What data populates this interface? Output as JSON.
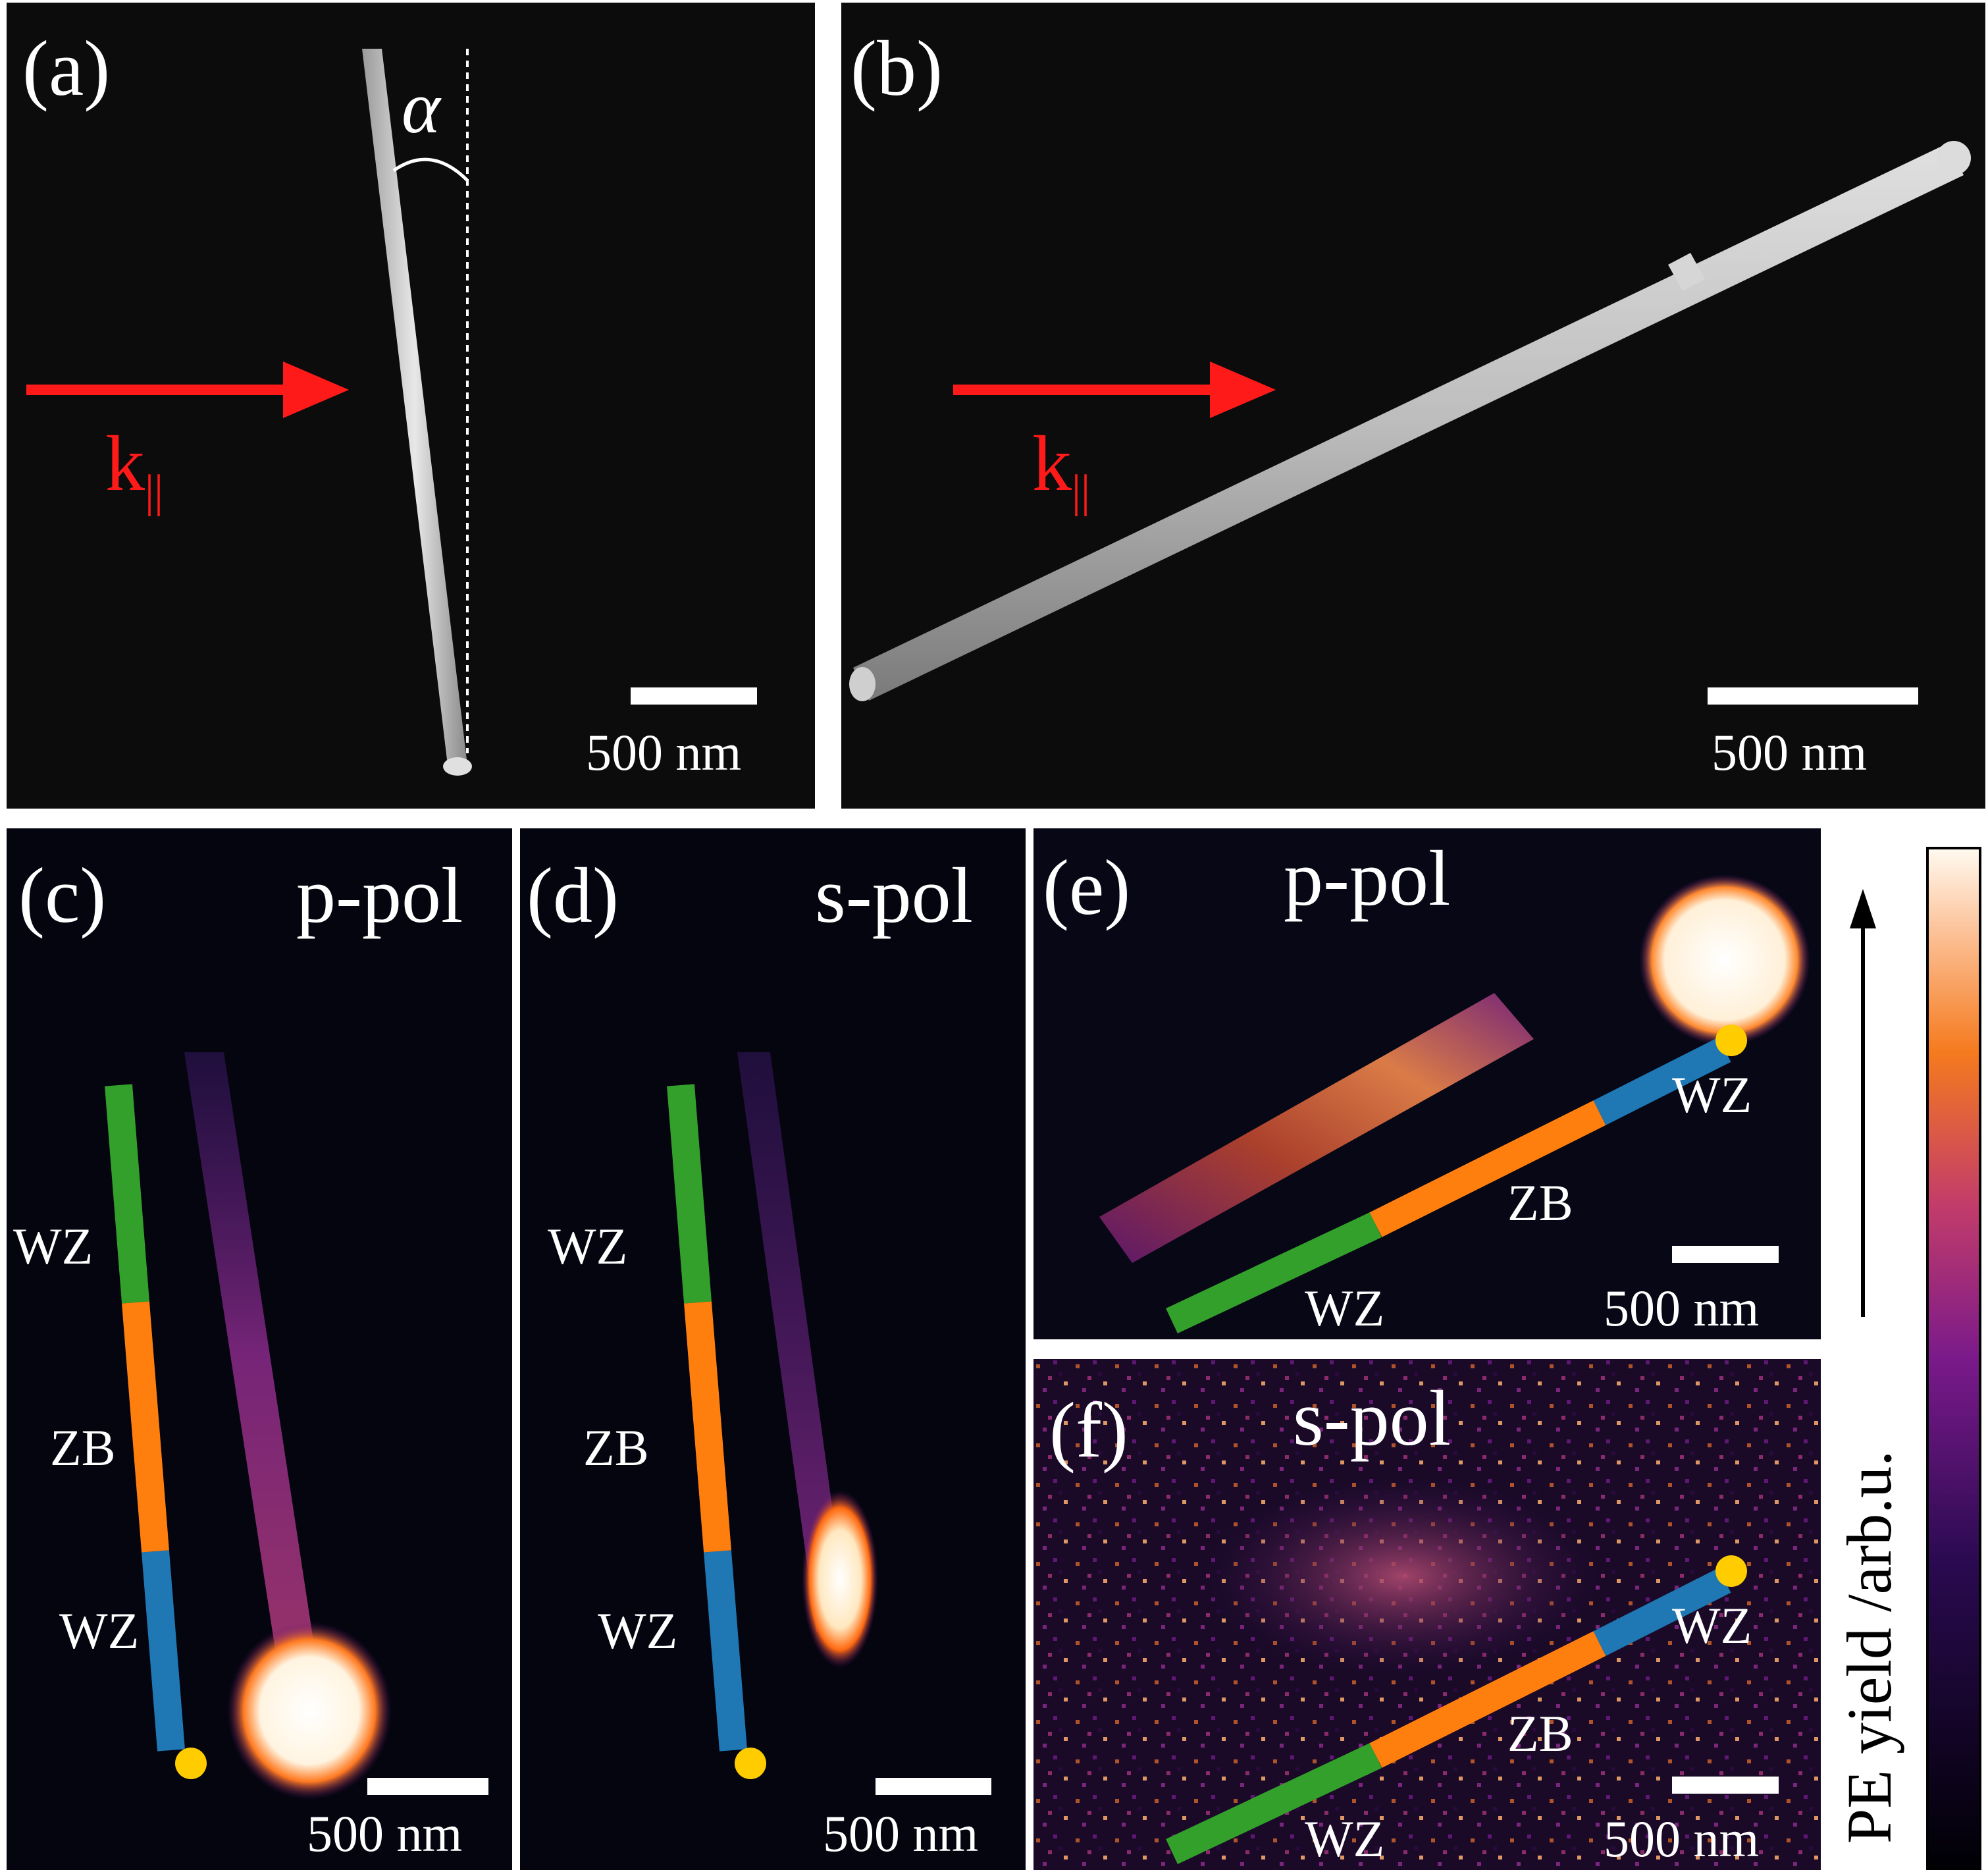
{
  "panels": {
    "a": {
      "label": "(a)",
      "angle_label": "α",
      "k_label": "k",
      "k_sub": "||",
      "scale_text": "500 nm"
    },
    "b": {
      "label": "(b)",
      "k_label": "k",
      "k_sub": "||",
      "scale_text": "500 nm"
    },
    "c": {
      "label": "(c)",
      "pol": "p-pol",
      "segments": [
        "WZ",
        "ZB",
        "WZ"
      ],
      "scale_text": "500 nm"
    },
    "d": {
      "label": "(d)",
      "pol": "s-pol",
      "segments": [
        "WZ",
        "ZB",
        "WZ"
      ],
      "scale_text": "500 nm"
    },
    "e": {
      "label": "(e)",
      "pol": "p-pol",
      "segments": [
        "WZ",
        "ZB",
        "WZ"
      ],
      "scale_text": "500 nm"
    },
    "f": {
      "label": "(f)",
      "pol": "s-pol",
      "segments": [
        "WZ",
        "ZB",
        "WZ"
      ],
      "scale_text": "500 nm"
    }
  },
  "colorbar": {
    "title": "PE yield /arb.u."
  },
  "colors": {
    "wz_bottom": "#33a02c",
    "zb": "#ff7f0e",
    "wz_top": "#1f77b4",
    "tip": "#ffcc00",
    "arrow": "#ff1a1a"
  }
}
